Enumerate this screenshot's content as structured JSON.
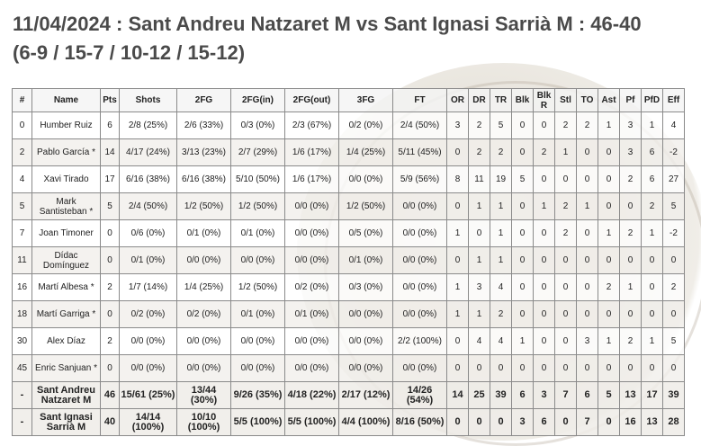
{
  "header": {
    "title": "11/04/2024 : Sant Andreu Natzaret M vs Sant Ignasi Sarrià M : 46-40",
    "quarters": "(6-9 / 15-7 / 10-12 / 15-12)"
  },
  "columns": [
    "#",
    "Name",
    "Pts",
    "Shots",
    "2FG",
    "2FG(in)",
    "2FG(out)",
    "3FG",
    "FT",
    "OR",
    "DR",
    "TR",
    "Blk",
    "Blk R",
    "Stl",
    "TO",
    "Ast",
    "Pf",
    "PfD",
    "Eff"
  ],
  "players": [
    {
      "num": "0",
      "name": "Humber Ruiz",
      "pts": "6",
      "shots": "2/8 (25%)",
      "fg2": "2/6 (33%)",
      "fg2in": "0/3 (0%)",
      "fg2out": "2/3 (67%)",
      "fg3": "0/2 (0%)",
      "ft": "2/4 (50%)",
      "or": "3",
      "dr": "2",
      "tr": "5",
      "blk": "0",
      "blkr": "0",
      "stl": "2",
      "to": "2",
      "ast": "1",
      "pf": "3",
      "pfd": "1",
      "eff": "4"
    },
    {
      "num": "2",
      "name": "Pablo García *",
      "pts": "14",
      "shots": "4/17 (24%)",
      "fg2": "3/13 (23%)",
      "fg2in": "2/7 (29%)",
      "fg2out": "1/6 (17%)",
      "fg3": "1/4 (25%)",
      "ft": "5/11 (45%)",
      "or": "0",
      "dr": "2",
      "tr": "2",
      "blk": "0",
      "blkr": "2",
      "stl": "1",
      "to": "0",
      "ast": "0",
      "pf": "3",
      "pfd": "6",
      "eff": "-2"
    },
    {
      "num": "4",
      "name": "Xavi Tirado",
      "pts": "17",
      "shots": "6/16 (38%)",
      "fg2": "6/16 (38%)",
      "fg2in": "5/10 (50%)",
      "fg2out": "1/6 (17%)",
      "fg3": "0/0 (0%)",
      "ft": "5/9 (56%)",
      "or": "8",
      "dr": "11",
      "tr": "19",
      "blk": "5",
      "blkr": "0",
      "stl": "0",
      "to": "0",
      "ast": "0",
      "pf": "2",
      "pfd": "6",
      "eff": "27"
    },
    {
      "num": "5",
      "name": "Mark Santisteban *",
      "pts": "5",
      "shots": "2/4 (50%)",
      "fg2": "1/2 (50%)",
      "fg2in": "1/2 (50%)",
      "fg2out": "0/0 (0%)",
      "fg3": "1/2 (50%)",
      "ft": "0/0 (0%)",
      "or": "0",
      "dr": "1",
      "tr": "1",
      "blk": "0",
      "blkr": "1",
      "stl": "2",
      "to": "1",
      "ast": "0",
      "pf": "0",
      "pfd": "2",
      "eff": "5"
    },
    {
      "num": "7",
      "name": "Joan Timoner",
      "pts": "0",
      "shots": "0/6 (0%)",
      "fg2": "0/1 (0%)",
      "fg2in": "0/1 (0%)",
      "fg2out": "0/0 (0%)",
      "fg3": "0/5 (0%)",
      "ft": "0/0 (0%)",
      "or": "1",
      "dr": "0",
      "tr": "1",
      "blk": "0",
      "blkr": "0",
      "stl": "2",
      "to": "0",
      "ast": "1",
      "pf": "2",
      "pfd": "1",
      "eff": "-2"
    },
    {
      "num": "11",
      "name": "Dídac Domínguez",
      "pts": "0",
      "shots": "0/1 (0%)",
      "fg2": "0/0 (0%)",
      "fg2in": "0/0 (0%)",
      "fg2out": "0/0 (0%)",
      "fg3": "0/1 (0%)",
      "ft": "0/0 (0%)",
      "or": "0",
      "dr": "1",
      "tr": "1",
      "blk": "0",
      "blkr": "0",
      "stl": "0",
      "to": "0",
      "ast": "0",
      "pf": "0",
      "pfd": "0",
      "eff": "0"
    },
    {
      "num": "16",
      "name": "Martí Albesa *",
      "pts": "2",
      "shots": "1/7 (14%)",
      "fg2": "1/4 (25%)",
      "fg2in": "1/2 (50%)",
      "fg2out": "0/2 (0%)",
      "fg3": "0/3 (0%)",
      "ft": "0/0 (0%)",
      "or": "1",
      "dr": "3",
      "tr": "4",
      "blk": "0",
      "blkr": "0",
      "stl": "0",
      "to": "0",
      "ast": "2",
      "pf": "1",
      "pfd": "0",
      "eff": "2"
    },
    {
      "num": "18",
      "name": "Martí Garriga *",
      "pts": "0",
      "shots": "0/2 (0%)",
      "fg2": "0/2 (0%)",
      "fg2in": "0/1 (0%)",
      "fg2out": "0/1 (0%)",
      "fg3": "0/0 (0%)",
      "ft": "0/0 (0%)",
      "or": "1",
      "dr": "1",
      "tr": "2",
      "blk": "0",
      "blkr": "0",
      "stl": "0",
      "to": "0",
      "ast": "0",
      "pf": "0",
      "pfd": "0",
      "eff": "0"
    },
    {
      "num": "30",
      "name": "Alex Díaz",
      "pts": "2",
      "shots": "0/0 (0%)",
      "fg2": "0/0 (0%)",
      "fg2in": "0/0 (0%)",
      "fg2out": "0/0 (0%)",
      "fg3": "0/0 (0%)",
      "ft": "2/2 (100%)",
      "or": "0",
      "dr": "4",
      "tr": "4",
      "blk": "1",
      "blkr": "0",
      "stl": "0",
      "to": "3",
      "ast": "1",
      "pf": "2",
      "pfd": "1",
      "eff": "5"
    },
    {
      "num": "45",
      "name": "Enric Sanjuan *",
      "pts": "0",
      "shots": "0/0 (0%)",
      "fg2": "0/0 (0%)",
      "fg2in": "0/0 (0%)",
      "fg2out": "0/0 (0%)",
      "fg3": "0/0 (0%)",
      "ft": "0/0 (0%)",
      "or": "0",
      "dr": "0",
      "tr": "0",
      "blk": "0",
      "blkr": "0",
      "stl": "0",
      "to": "0",
      "ast": "0",
      "pf": "0",
      "pfd": "0",
      "eff": "0"
    }
  ],
  "teams": [
    {
      "num": "-",
      "name": "Sant Andreu Natzaret M",
      "pts": "46",
      "shots": "15/61 (25%)",
      "fg2": "13/44 (30%)",
      "fg2in": "9/26 (35%)",
      "fg2out": "4/18 (22%)",
      "fg3": "2/17 (12%)",
      "ft": "14/26 (54%)",
      "or": "14",
      "dr": "25",
      "tr": "39",
      "blk": "6",
      "blkr": "3",
      "stl": "7",
      "to": "6",
      "ast": "5",
      "pf": "13",
      "pfd": "17",
      "eff": "39"
    },
    {
      "num": "-",
      "name": "Sant Ignasi Sarrià M",
      "pts": "40",
      "shots": "14/14 (100%)",
      "fg2": "10/10 (100%)",
      "fg2in": "5/5 (100%)",
      "fg2out": "5/5 (100%)",
      "fg3": "4/4 (100%)",
      "ft": "8/16 (50%)",
      "or": "0",
      "dr": "0",
      "tr": "0",
      "blk": "3",
      "blkr": "6",
      "stl": "0",
      "to": "7",
      "ast": "0",
      "pf": "16",
      "pfd": "13",
      "eff": "28"
    }
  ]
}
